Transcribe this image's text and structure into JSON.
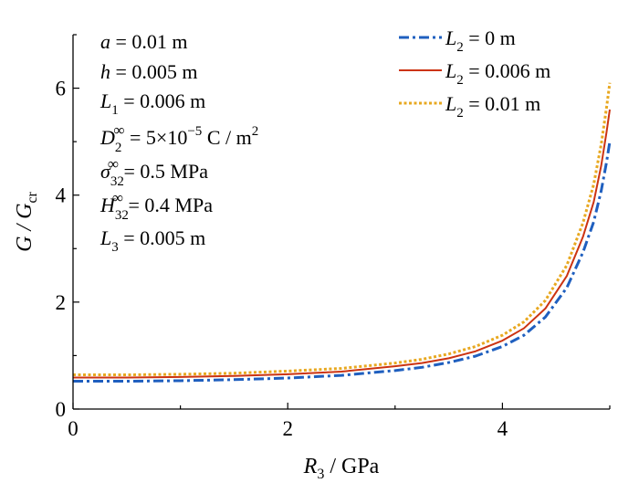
{
  "chart_data": {
    "type": "line",
    "title": "",
    "xlabel": {
      "main": "R",
      "sub": "3",
      "unit": " / GPa"
    },
    "ylabel": {
      "main": "G / G",
      "sub": "cr"
    },
    "xlim": [
      0,
      5
    ],
    "ylim": [
      0,
      7
    ],
    "xticks": [
      0,
      2,
      4
    ],
    "yticks": [
      0,
      2,
      4,
      6
    ],
    "grid": false,
    "legend_position": "top-right",
    "colors": {
      "L2_0": "#1f5fbf",
      "L2_0006": "#cc3311",
      "L2_001": "#e8a820"
    },
    "parameters": [
      {
        "label": "a",
        "value": " = 0.01 m"
      },
      {
        "label": "h",
        "value": " = 0.005 m"
      },
      {
        "label": "L",
        "sub": "1",
        "value": " = 0.006 m"
      },
      {
        "label": "D",
        "sub": "2",
        "sup": "∞",
        "value": " = 5×10",
        "exp": "−5",
        "unit": " C / m",
        "unit_sup": "2"
      },
      {
        "label": "σ",
        "sub": "32",
        "sup": "∞",
        "value": " = 0.5 MPa"
      },
      {
        "label": "H",
        "sub": "32",
        "sup": "∞",
        "value": " = 0.4 MPa"
      },
      {
        "label": "L",
        "sub": "3",
        "value": " = 0.005 m"
      }
    ],
    "series": [
      {
        "name": {
          "main": "L",
          "sub": "2",
          "rest": " = 0 m"
        },
        "style": "dashdot",
        "x": [
          0,
          0.5,
          1.0,
          1.5,
          2.0,
          2.5,
          3.0,
          3.25,
          3.5,
          3.75,
          4.0,
          4.2,
          4.4,
          4.6,
          4.75,
          4.85,
          4.92,
          4.97,
          5.0
        ],
        "y": [
          0.52,
          0.52,
          0.53,
          0.55,
          0.58,
          0.63,
          0.72,
          0.78,
          0.87,
          0.99,
          1.17,
          1.38,
          1.72,
          2.27,
          2.93,
          3.5,
          4.08,
          4.62,
          5.0
        ]
      },
      {
        "name": {
          "main": "L",
          "sub": "2",
          "rest": " = 0.006 m"
        },
        "style": "solid",
        "x": [
          0,
          0.5,
          1.0,
          1.5,
          2.0,
          2.5,
          3.0,
          3.25,
          3.5,
          3.75,
          4.0,
          4.2,
          4.4,
          4.6,
          4.75,
          4.85,
          4.92,
          4.97,
          5.0
        ],
        "y": [
          0.59,
          0.59,
          0.6,
          0.62,
          0.65,
          0.7,
          0.8,
          0.86,
          0.95,
          1.08,
          1.28,
          1.51,
          1.88,
          2.49,
          3.22,
          3.87,
          4.55,
          5.18,
          5.6
        ]
      },
      {
        "name": {
          "main": "L",
          "sub": "2",
          "rest": " = 0.01 m"
        },
        "style": "dotted",
        "x": [
          0,
          0.5,
          1.0,
          1.5,
          2.0,
          2.5,
          3.0,
          3.25,
          3.5,
          3.75,
          4.0,
          4.2,
          4.4,
          4.6,
          4.75,
          4.85,
          4.92,
          4.97,
          5.0
        ],
        "y": [
          0.64,
          0.64,
          0.65,
          0.67,
          0.71,
          0.76,
          0.86,
          0.93,
          1.03,
          1.17,
          1.38,
          1.63,
          2.03,
          2.69,
          3.48,
          4.2,
          4.95,
          5.64,
          6.1
        ]
      }
    ]
  }
}
